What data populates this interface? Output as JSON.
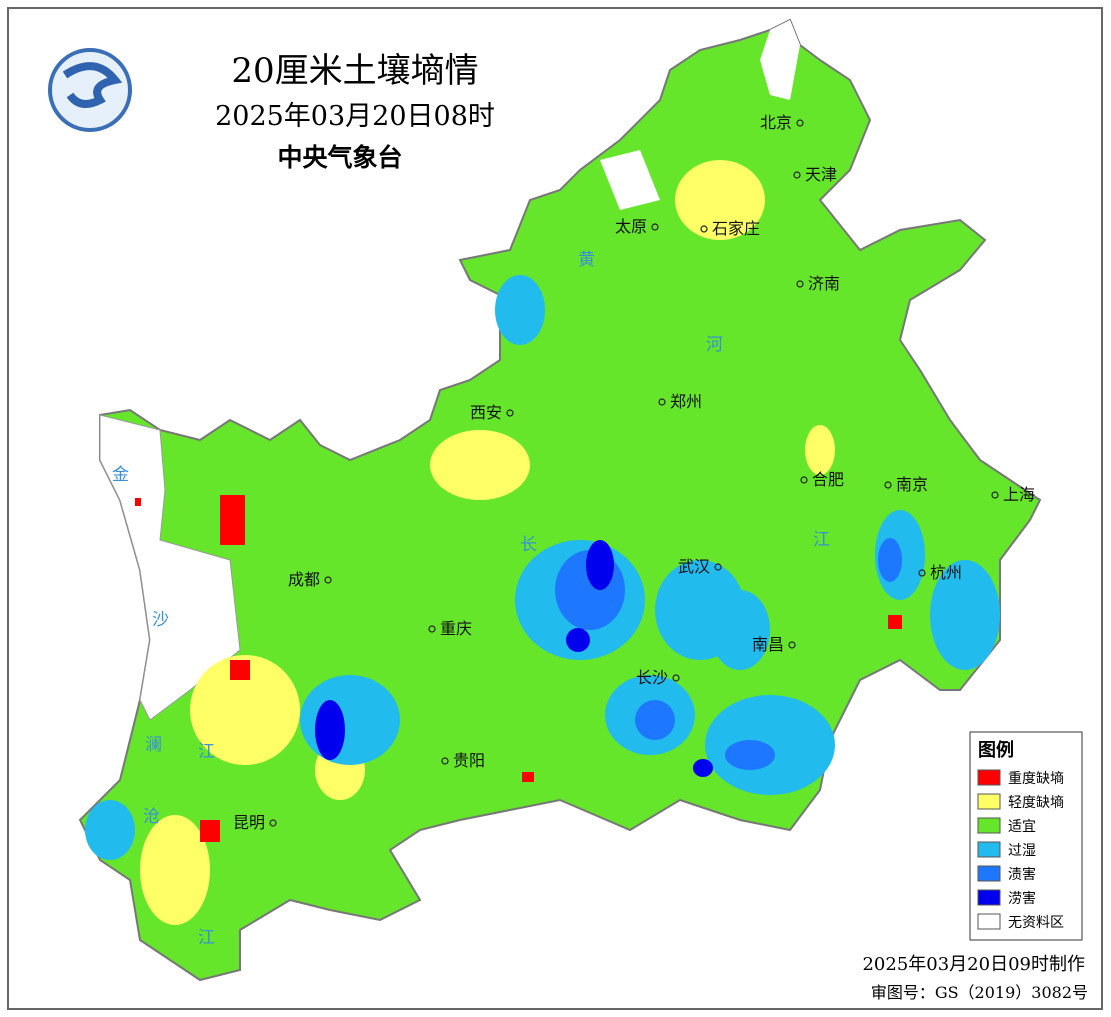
{
  "header": {
    "title": "20厘米土壤墒情",
    "subtitle": "2025年03月20日08时",
    "agency": "中央气象台"
  },
  "cities": [
    "北京",
    "天津",
    "太原",
    "石家庄",
    "济南",
    "郑州",
    "西安",
    "合肥",
    "南京",
    "上海",
    "成都",
    "武汉",
    "杭州",
    "重庆",
    "南昌",
    "长沙",
    "贵阳",
    "昆明"
  ],
  "rivers": [
    "黄",
    "河",
    "长",
    "江",
    "金",
    "沙",
    "澜",
    "沧",
    "江",
    "江"
  ],
  "legend": {
    "title": "图例",
    "items": [
      {
        "label": "重度缺墒",
        "color": "#ff0000"
      },
      {
        "label": "轻度缺墒",
        "color": "#ffff66"
      },
      {
        "label": "适宜",
        "color": "#66e62a"
      },
      {
        "label": "过湿",
        "color": "#22bbee"
      },
      {
        "label": "渍害",
        "color": "#1e78ff"
      },
      {
        "label": "涝害",
        "color": "#0000ee"
      },
      {
        "label": "无资料区",
        "color": "#ffffff"
      }
    ]
  },
  "footer": {
    "made": "2025年03月20日09时制作",
    "approval": "审图号：GS（2019）3082号"
  }
}
